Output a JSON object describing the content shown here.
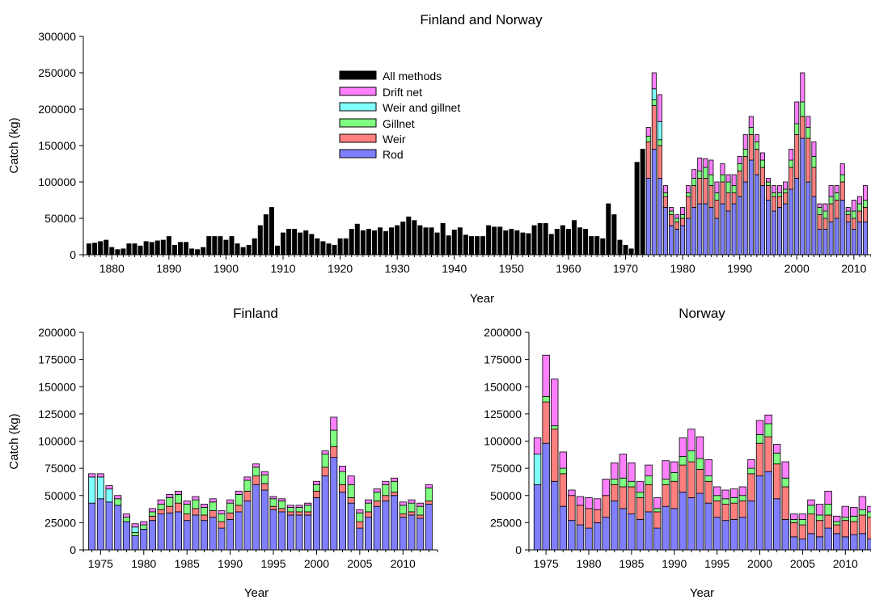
{
  "colors": {
    "all_methods": "#000000",
    "drift_net": "#ff80ff",
    "weir_and_gillnet": "#80ffff",
    "gillnet": "#7fff7f",
    "weir": "#ff7f7f",
    "rod": "#7f7fff"
  },
  "chart_data": [
    {
      "type": "bar",
      "stacked": true,
      "title": "Finland and Norway",
      "xlabel": "Year",
      "ylabel": "Catch (kg)",
      "ylim": [
        0,
        300000
      ],
      "yticks": [
        0,
        50000,
        100000,
        150000,
        200000,
        250000,
        300000
      ],
      "xlim": [
        1875,
        2013
      ],
      "xticks": [
        1880,
        1890,
        1900,
        1910,
        1920,
        1930,
        1940,
        1950,
        1960,
        1970,
        1980,
        1990,
        2000,
        2010
      ],
      "legend_position": "top-center",
      "legend": [
        {
          "name": "All methods",
          "key": "all_methods"
        },
        {
          "name": "Drift net",
          "key": "drift_net"
        },
        {
          "name": "Weir and gillnet",
          "key": "weir_and_gillnet"
        },
        {
          "name": "Gillnet",
          "key": "gillnet"
        },
        {
          "name": "Weir",
          "key": "weir"
        },
        {
          "name": "Rod",
          "key": "rod"
        }
      ],
      "series_order": [
        "all_methods",
        "rod",
        "weir",
        "gillnet",
        "weir_and_gillnet",
        "drift_net"
      ],
      "all_methods": {
        "years": [
          1876,
          1877,
          1878,
          1879,
          1880,
          1881,
          1882,
          1883,
          1884,
          1885,
          1886,
          1887,
          1888,
          1889,
          1890,
          1891,
          1892,
          1893,
          1894,
          1895,
          1896,
          1897,
          1898,
          1899,
          1900,
          1901,
          1902,
          1903,
          1904,
          1905,
          1906,
          1907,
          1908,
          1909,
          1910,
          1911,
          1912,
          1913,
          1914,
          1915,
          1916,
          1917,
          1918,
          1919,
          1920,
          1921,
          1922,
          1923,
          1924,
          1925,
          1926,
          1927,
          1928,
          1929,
          1930,
          1931,
          1932,
          1933,
          1934,
          1935,
          1936,
          1937,
          1938,
          1939,
          1940,
          1941,
          1942,
          1943,
          1944,
          1945,
          1946,
          1947,
          1948,
          1949,
          1950,
          1951,
          1952,
          1953,
          1954,
          1955,
          1956,
          1957,
          1958,
          1959,
          1960,
          1961,
          1962,
          1963,
          1964,
          1965,
          1966,
          1967,
          1968,
          1969,
          1970,
          1971,
          1972,
          1973
        ],
        "values": [
          15000,
          16000,
          18000,
          20000,
          10000,
          7000,
          8000,
          15000,
          15000,
          12000,
          18000,
          17000,
          19000,
          20000,
          25000,
          13000,
          17000,
          17000,
          8000,
          7000,
          10000,
          25000,
          25000,
          25000,
          20000,
          25000,
          15000,
          10000,
          13000,
          22000,
          40000,
          55000,
          65000,
          12000,
          30000,
          35000,
          35000,
          30000,
          33000,
          28000,
          22000,
          18000,
          15000,
          13000,
          22000,
          22000,
          35000,
          42000,
          33000,
          35000,
          33000,
          37000,
          32000,
          37000,
          40000,
          45000,
          52000,
          47000,
          40000,
          37000,
          37000,
          30000,
          43000,
          26000,
          34000,
          37000,
          27000,
          25000,
          25000,
          25000,
          40000,
          38000,
          38000,
          33000,
          35000,
          33000,
          30000,
          29000,
          40000,
          43000,
          43000,
          28000,
          35000,
          40000,
          35000,
          47000,
          37000,
          35000,
          25000,
          25000,
          22000,
          70000,
          55000,
          20000,
          13000,
          8000,
          127000,
          145000
        ]
      },
      "stacked_years": [
        1974,
        1975,
        1976,
        1977,
        1978,
        1979,
        1980,
        1981,
        1982,
        1983,
        1984,
        1985,
        1986,
        1987,
        1988,
        1989,
        1990,
        1991,
        1992,
        1993,
        1994,
        1995,
        1996,
        1997,
        1998,
        1999,
        2000,
        2001,
        2002,
        2003,
        2004,
        2005,
        2006,
        2007,
        2008,
        2009,
        2010,
        2011,
        2012
      ],
      "series": {
        "rod": [
          105000,
          145000,
          105000,
          65000,
          40000,
          35000,
          40000,
          50000,
          65000,
          70000,
          70000,
          65000,
          50000,
          70000,
          60000,
          70000,
          80000,
          100000,
          130000,
          110000,
          95000,
          75000,
          60000,
          65000,
          70000,
          90000,
          105000,
          160000,
          100000,
          80000,
          35000,
          35000,
          45000,
          50000,
          75000,
          45000,
          35000,
          45000,
          45000
        ],
        "weir": [
          50000,
          60000,
          45000,
          15000,
          15000,
          10000,
          10000,
          30000,
          30000,
          35000,
          35000,
          30000,
          25000,
          30000,
          25000,
          15000,
          35000,
          35000,
          35000,
          35000,
          25000,
          20000,
          20000,
          15000,
          15000,
          30000,
          60000,
          30000,
          60000,
          40000,
          20000,
          15000,
          25000,
          25000,
          25000,
          10000,
          15000,
          15000,
          20000
        ],
        "gillnet": [
          8000,
          8000,
          8000,
          5000,
          5000,
          5000,
          5000,
          5000,
          10000,
          10000,
          15000,
          15000,
          10000,
          10000,
          15000,
          10000,
          10000,
          10000,
          10000,
          10000,
          10000,
          5000,
          5000,
          5000,
          5000,
          10000,
          15000,
          20000,
          15000,
          15000,
          10000,
          10000,
          10000,
          10000,
          10000,
          5000,
          10000,
          10000,
          10000
        ],
        "weir_and_gillnet": [
          0,
          15000,
          25000,
          0,
          0,
          0,
          0,
          0,
          0,
          0,
          0,
          0,
          0,
          0,
          0,
          0,
          0,
          0,
          0,
          0,
          0,
          0,
          0,
          0,
          0,
          0,
          0,
          0,
          0,
          0,
          0,
          0,
          0,
          0,
          0,
          0,
          0,
          0,
          0
        ],
        "drift_net": [
          12000,
          22000,
          37000,
          10000,
          5000,
          5000,
          10000,
          10000,
          12000,
          18000,
          12000,
          20000,
          15000,
          15000,
          10000,
          15000,
          10000,
          20000,
          15000,
          10000,
          10000,
          5000,
          10000,
          10000,
          10000,
          15000,
          30000,
          40000,
          15000,
          20000,
          5000,
          10000,
          15000,
          10000,
          15000,
          5000,
          15000,
          10000,
          20000
        ]
      }
    },
    {
      "type": "bar",
      "stacked": true,
      "title": "Finland",
      "xlabel": "Year",
      "ylabel": "Catch (kg)",
      "ylim": [
        0,
        200000
      ],
      "yticks": [
        0,
        25000,
        50000,
        75000,
        100000,
        125000,
        150000,
        175000,
        200000
      ],
      "xlim": [
        1973,
        2014
      ],
      "xticks": [
        1975,
        1980,
        1985,
        1990,
        1995,
        2000,
        2005,
        2010
      ],
      "series_order": [
        "rod",
        "weir",
        "gillnet",
        "weir_and_gillnet",
        "drift_net"
      ],
      "years": [
        1974,
        1975,
        1976,
        1977,
        1978,
        1979,
        1980,
        1981,
        1982,
        1983,
        1984,
        1985,
        1986,
        1987,
        1988,
        1989,
        1990,
        1991,
        1992,
        1993,
        1994,
        1995,
        1996,
        1997,
        1998,
        1999,
        2000,
        2001,
        2002,
        2003,
        2004,
        2005,
        2006,
        2007,
        2008,
        2009,
        2010,
        2011,
        2012,
        2013
      ],
      "series": {
        "rod": [
          43000,
          47000,
          44000,
          41000,
          26000,
          13000,
          19000,
          27000,
          33000,
          34000,
          35000,
          27000,
          32000,
          27000,
          30000,
          20000,
          28000,
          35000,
          45000,
          60000,
          55000,
          37000,
          35000,
          32000,
          32000,
          32000,
          48000,
          68000,
          85000,
          53000,
          43000,
          20000,
          30000,
          40000,
          45000,
          50000,
          30000,
          32000,
          29000,
          42000
        ],
        "weir": [
          0,
          0,
          0,
          0,
          0,
          0,
          0,
          4000,
          4000,
          6000,
          8000,
          6000,
          6000,
          5000,
          6000,
          6000,
          6000,
          6000,
          9000,
          8000,
          6000,
          3000,
          3000,
          3000,
          3000,
          3000,
          6000,
          8000,
          10000,
          7000,
          5000,
          6000,
          5000,
          5000,
          5000,
          3000,
          3000,
          3000,
          3000,
          3000
        ],
        "gillnet": [
          0,
          0,
          0,
          6000,
          4000,
          3000,
          4000,
          4000,
          5000,
          8000,
          8000,
          9000,
          8000,
          7000,
          8000,
          7000,
          9000,
          10000,
          10000,
          8000,
          8000,
          7000,
          7000,
          4000,
          4000,
          6000,
          6000,
          12000,
          15000,
          12000,
          12000,
          8000,
          8000,
          8000,
          10000,
          10000,
          8000,
          8000,
          8000,
          12000
        ],
        "weir_and_gillnet": [
          24000,
          20000,
          12000,
          0,
          0,
          5000,
          0,
          0,
          0,
          0,
          0,
          0,
          0,
          0,
          0,
          0,
          0,
          0,
          0,
          0,
          0,
          0,
          0,
          0,
          0,
          0,
          0,
          0,
          0,
          0,
          0,
          0,
          0,
          0,
          0,
          0,
          0,
          0,
          0,
          0
        ],
        "drift_net": [
          3000,
          3000,
          3000,
          3000,
          3000,
          3000,
          3000,
          3000,
          4000,
          3000,
          3000,
          3000,
          3000,
          3000,
          3000,
          3000,
          3000,
          3000,
          3000,
          3000,
          3000,
          2000,
          2000,
          2000,
          2000,
          2000,
          3000,
          3000,
          12000,
          5000,
          8000,
          3000,
          3000,
          3000,
          3000,
          3000,
          3000,
          3000,
          3000,
          3000
        ]
      }
    },
    {
      "type": "bar",
      "stacked": true,
      "title": "Norway",
      "xlabel": "Year",
      "ylabel": "",
      "ylim": [
        0,
        200000
      ],
      "yticks": [
        0,
        25000,
        50000,
        75000,
        100000,
        125000,
        150000,
        175000,
        200000
      ],
      "xlim": [
        1973,
        2013
      ],
      "xticks": [
        1975,
        1980,
        1985,
        1990,
        1995,
        2000,
        2005,
        2010
      ],
      "series_order": [
        "rod",
        "weir",
        "gillnet",
        "weir_and_gillnet",
        "drift_net"
      ],
      "years": [
        1974,
        1975,
        1976,
        1977,
        1978,
        1979,
        1980,
        1981,
        1982,
        1983,
        1984,
        1985,
        1986,
        1987,
        1988,
        1989,
        1990,
        1991,
        1992,
        1993,
        1994,
        1995,
        1996,
        1997,
        1998,
        1999,
        2000,
        2001,
        2002,
        2003,
        2004,
        2005,
        2006,
        2007,
        2008,
        2009,
        2010,
        2011,
        2012,
        2013
      ],
      "series": {
        "rod": [
          60000,
          98000,
          63000,
          40000,
          27000,
          23000,
          20000,
          25000,
          30000,
          45000,
          38000,
          33000,
          28000,
          35000,
          20000,
          40000,
          38000,
          53000,
          48000,
          52000,
          43000,
          30000,
          27000,
          28000,
          30000,
          45000,
          68000,
          72000,
          47000,
          28000,
          12000,
          10000,
          15000,
          12000,
          20000,
          15000,
          12000,
          14000,
          15000,
          10000
        ],
        "weir": [
          0,
          38000,
          48000,
          30000,
          23000,
          18000,
          18000,
          12000,
          20000,
          15000,
          20000,
          25000,
          20000,
          25000,
          15000,
          20000,
          25000,
          25000,
          33000,
          22000,
          20000,
          15000,
          15000,
          15000,
          15000,
          25000,
          30000,
          32000,
          32000,
          30000,
          13000,
          13000,
          18000,
          15000,
          12000,
          8000,
          15000,
          12000,
          17000,
          20000
        ],
        "gillnet": [
          0,
          5000,
          3000,
          5000,
          0,
          0,
          0,
          0,
          0,
          5000,
          8000,
          5000,
          5000,
          8000,
          3000,
          5000,
          8000,
          8000,
          10000,
          10000,
          5000,
          5000,
          5000,
          5000,
          5000,
          5000,
          8000,
          12000,
          10000,
          8000,
          3000,
          5000,
          8000,
          5000,
          10000,
          3000,
          3000,
          5000,
          5000,
          5000
        ],
        "weir_and_gillnet": [
          28000,
          0,
          0,
          0,
          0,
          0,
          0,
          0,
          0,
          0,
          0,
          0,
          0,
          0,
          0,
          0,
          0,
          0,
          0,
          0,
          0,
          0,
          0,
          0,
          0,
          0,
          0,
          0,
          0,
          0,
          0,
          0,
          0,
          0,
          0,
          0,
          0,
          0,
          0,
          0
        ],
        "drift_net": [
          15000,
          38000,
          43000,
          15000,
          5000,
          8000,
          10000,
          10000,
          15000,
          15000,
          22000,
          17000,
          10000,
          10000,
          10000,
          17000,
          10000,
          17000,
          20000,
          20000,
          15000,
          8000,
          8000,
          8000,
          8000,
          8000,
          13000,
          8000,
          8000,
          15000,
          5000,
          5000,
          5000,
          10000,
          12000,
          5000,
          10000,
          8000,
          12000,
          5000
        ]
      }
    }
  ]
}
